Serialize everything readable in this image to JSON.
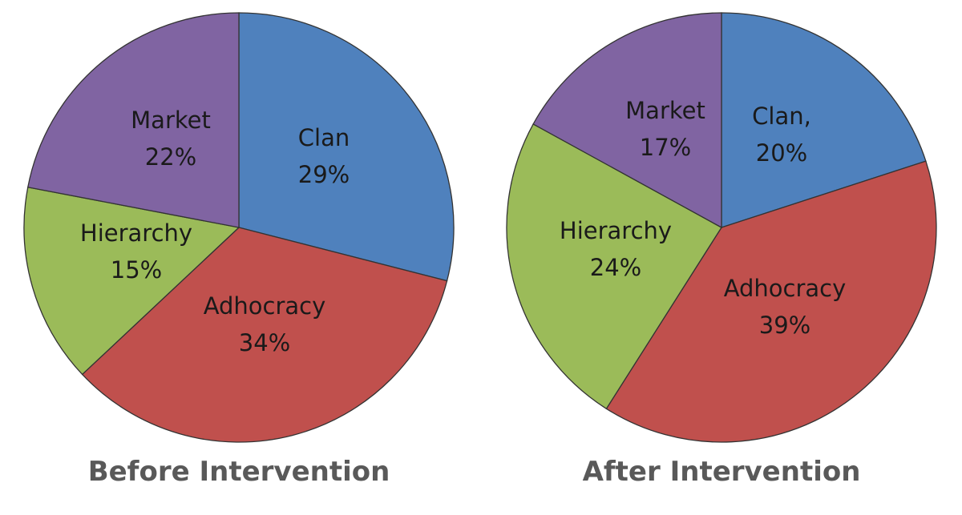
{
  "chart_data": [
    {
      "type": "pie",
      "title": "Before Intervention",
      "start_angle_deg": 0,
      "direction": "clockwise",
      "slices": [
        {
          "name": "Clan",
          "label": "Clan",
          "value": 29,
          "value_label": "29%",
          "color": "#4F81BD"
        },
        {
          "name": "Adhocracy",
          "label": "Adhocracy",
          "value": 34,
          "value_label": "34%",
          "color": "#C0504D"
        },
        {
          "name": "Hierarchy",
          "label": "Hierarchy",
          "value": 15,
          "value_label": "15%",
          "color": "#9BBB59"
        },
        {
          "name": "Market",
          "label": "Market",
          "value": 22,
          "value_label": "22%",
          "color": "#8064A2"
        }
      ]
    },
    {
      "type": "pie",
      "title": "After Intervention",
      "start_angle_deg": 0,
      "direction": "clockwise",
      "slices": [
        {
          "name": "Clan",
          "label": "Clan,",
          "value": 20,
          "value_label": "20%",
          "color": "#4F81BD"
        },
        {
          "name": "Adhocracy",
          "label": "Adhocracy",
          "value": 39,
          "value_label": "39%",
          "color": "#C0504D"
        },
        {
          "name": "Hierarchy",
          "label": "Hierarchy",
          "value": 24,
          "value_label": "24%",
          "color": "#9BBB59"
        },
        {
          "name": "Market",
          "label": "Market",
          "value": 17,
          "value_label": "17%",
          "color": "#8064A2"
        }
      ]
    }
  ]
}
